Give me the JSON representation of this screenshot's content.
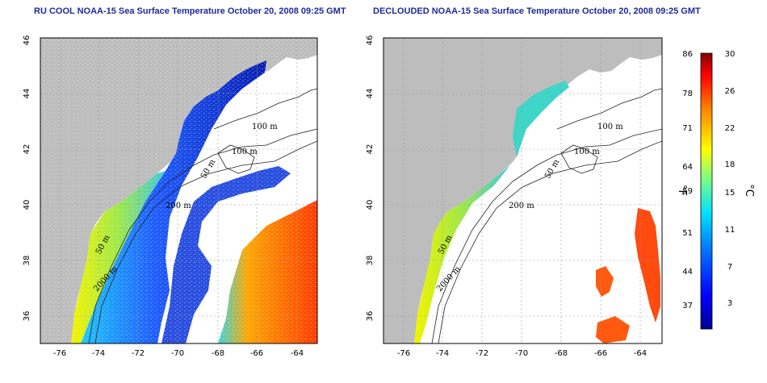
{
  "titles": {
    "left": "RU COOL NOAA-15 Sea Surface Temperature October 20, 2008 09:25 GMT",
    "right": "DECLOUDED NOAA-15 Sea Surface Temperature October 20, 2008 09:25 GMT"
  },
  "map": {
    "lon_range": [
      -77,
      -63
    ],
    "lat_range": [
      35,
      46
    ],
    "x_ticks": [
      "-76",
      "-74",
      "-72",
      "-70",
      "-68",
      "-66",
      "-64"
    ],
    "y_ticks": [
      "36",
      "38",
      "40",
      "42",
      "44",
      "46"
    ],
    "contour_labels": {
      "c100a": "100 m",
      "c100b": "100 m",
      "c50": "50 m",
      "c200": "200 m",
      "c50b": "50 m",
      "c2000": "2000 m"
    },
    "colors": {
      "land": "#bdbdbd",
      "cloud": "#ffffff",
      "warm": "#ff4500",
      "mid": "#e6e93a",
      "cool": "#1a3cd8"
    }
  },
  "colorbar": {
    "fahrenheit_ticks": [
      "86",
      "78",
      "71",
      "64",
      "59",
      "51",
      "44",
      "37"
    ],
    "celsius_ticks": [
      "30",
      "26",
      "22",
      "18",
      "15",
      "11",
      "7",
      "3"
    ],
    "f_unit": "°F",
    "c_unit": "°C",
    "celsius_range": [
      0,
      30
    ]
  }
}
